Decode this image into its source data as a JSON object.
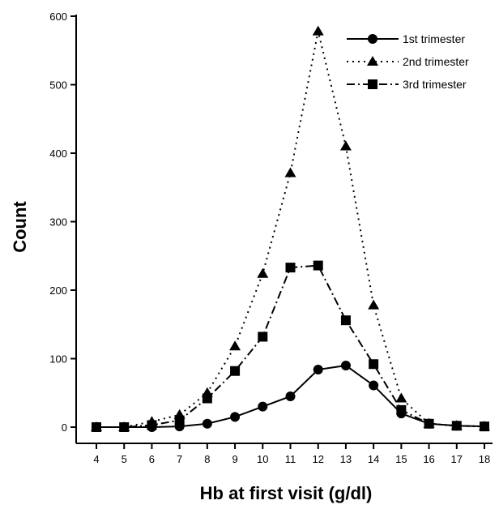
{
  "chart_data": {
    "type": "line",
    "title": "",
    "xlabel": "Hb at first visit (g/dl)",
    "ylabel": "Count",
    "xlim": [
      4,
      18
    ],
    "ylim": [
      0,
      600
    ],
    "x": [
      4,
      5,
      6,
      7,
      8,
      9,
      10,
      11,
      12,
      13,
      14,
      15,
      16,
      17,
      18
    ],
    "xticks": [
      "4",
      "5",
      "6",
      "7",
      "8",
      "9",
      "10",
      "11",
      "12",
      "13",
      "14",
      "15",
      "16",
      "17",
      "18"
    ],
    "yticks": [
      "0",
      "100",
      "200",
      "300",
      "400",
      "500",
      "600"
    ],
    "grid": false,
    "legend_position": "top-right",
    "series": [
      {
        "name": "1st trimester",
        "marker": "circle",
        "line_style": "solid",
        "values": [
          0,
          0,
          0,
          1,
          5,
          15,
          30,
          45,
          84,
          90,
          61,
          20,
          5,
          2,
          1
        ]
      },
      {
        "name": "2nd trimester",
        "marker": "triangle",
        "line_style": "dotted",
        "values": [
          0,
          0,
          8,
          18,
          50,
          118,
          224,
          371,
          578,
          410,
          178,
          42,
          5,
          2,
          1
        ]
      },
      {
        "name": "3rd trimester",
        "marker": "square",
        "line_style": "dashdot",
        "values": [
          0,
          0,
          3,
          10,
          42,
          82,
          132,
          233,
          236,
          156,
          92,
          25,
          5,
          2,
          1
        ]
      }
    ]
  }
}
